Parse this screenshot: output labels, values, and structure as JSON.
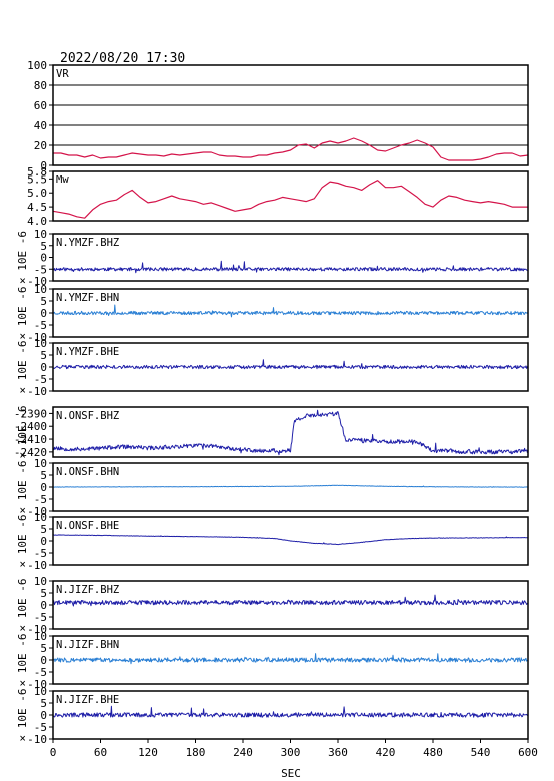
{
  "title": "2022/08/20 17:30",
  "xlabel": "SEC",
  "chart_data": [
    {
      "type": "line",
      "panel_label": "VR",
      "color": "#d4144a",
      "ylim": [
        0,
        100
      ],
      "yticks": [
        "0",
        "20",
        "40",
        "60",
        "80",
        "100"
      ],
      "grid": true,
      "x": [
        0,
        10,
        20,
        30,
        40,
        50,
        60,
        70,
        80,
        90,
        100,
        110,
        120,
        130,
        140,
        150,
        160,
        170,
        180,
        190,
        200,
        210,
        220,
        230,
        240,
        250,
        260,
        270,
        280,
        290,
        300,
        310,
        320,
        330,
        340,
        350,
        360,
        370,
        380,
        390,
        400,
        410,
        420,
        430,
        440,
        450,
        460,
        470,
        480,
        490,
        500,
        510,
        520,
        530,
        540,
        550,
        560,
        570,
        580,
        590,
        600
      ],
      "y": [
        12,
        12,
        10,
        10,
        8,
        10,
        7,
        8,
        8,
        10,
        12,
        11,
        10,
        10,
        9,
        11,
        10,
        11,
        12,
        13,
        13,
        10,
        9,
        9,
        8,
        8,
        10,
        10,
        12,
        13,
        15,
        20,
        21,
        17,
        22,
        24,
        22,
        24,
        27,
        24,
        20,
        15,
        14,
        17,
        20,
        22,
        25,
        22,
        18,
        8,
        5,
        5,
        5,
        5,
        6,
        8,
        11,
        12,
        12,
        9,
        10
      ]
    },
    {
      "type": "line",
      "panel_label": "Mw",
      "color": "#d4144a",
      "ylim": [
        4.0,
        5.8
      ],
      "yticks": [
        "4.0",
        "4.5",
        "5.0",
        "5.5",
        "5.8"
      ],
      "grid": false,
      "x": [
        0,
        10,
        20,
        30,
        40,
        50,
        60,
        70,
        80,
        90,
        100,
        110,
        120,
        130,
        140,
        150,
        160,
        170,
        180,
        190,
        200,
        210,
        220,
        230,
        240,
        250,
        260,
        270,
        280,
        290,
        300,
        310,
        320,
        330,
        340,
        350,
        360,
        370,
        380,
        390,
        400,
        410,
        420,
        430,
        440,
        450,
        460,
        470,
        480,
        490,
        500,
        510,
        520,
        530,
        540,
        550,
        560,
        570,
        580,
        590,
        600
      ],
      "y": [
        4.35,
        4.3,
        4.25,
        4.15,
        4.1,
        4.4,
        4.6,
        4.7,
        4.75,
        4.95,
        5.1,
        4.85,
        4.65,
        4.7,
        4.8,
        4.9,
        4.8,
        4.75,
        4.7,
        4.6,
        4.65,
        4.55,
        4.45,
        4.35,
        4.4,
        4.45,
        4.6,
        4.7,
        4.75,
        4.85,
        4.8,
        4.75,
        4.7,
        4.8,
        5.2,
        5.4,
        5.35,
        5.25,
        5.2,
        5.1,
        5.3,
        5.45,
        5.2,
        5.2,
        5.25,
        5.05,
        4.85,
        4.6,
        4.5,
        4.75,
        4.9,
        4.85,
        4.75,
        4.7,
        4.65,
        4.7,
        4.65,
        4.6,
        4.5,
        4.5,
        4.5
      ]
    },
    {
      "type": "line",
      "panel_label": "N.YMZF.BHZ",
      "ylabel": "× 10E -6",
      "color": "#1f1fa8",
      "ylim": [
        -10,
        10
      ],
      "yticks": [
        "-10",
        "-5",
        "0",
        "5",
        "10"
      ],
      "grid": false,
      "baseline": -5,
      "noise": 0.7,
      "seed": 11,
      "x": [
        0,
        600
      ],
      "y": [
        -5,
        -5
      ]
    },
    {
      "type": "line",
      "panel_label": "N.YMZF.BHN",
      "ylabel": "× 10E -6",
      "color": "#2a7fd4",
      "ylim": [
        -10,
        10
      ],
      "yticks": [
        "-10",
        "-5",
        "0",
        "5",
        "10"
      ],
      "grid": false,
      "baseline": 0,
      "noise": 0.7,
      "seed": 23,
      "x": [
        0,
        600
      ],
      "y": [
        0,
        0
      ]
    },
    {
      "type": "line",
      "panel_label": "N.YMZF.BHE",
      "ylabel": "× 10E -6",
      "color": "#1f1fa8",
      "ylim": [
        -10,
        10
      ],
      "yticks": [
        "-10",
        "-5",
        "0",
        "5",
        "10"
      ],
      "grid": false,
      "baseline": 0,
      "noise": 0.7,
      "seed": 37,
      "x": [
        0,
        600
      ],
      "y": [
        0,
        0
      ]
    },
    {
      "type": "line",
      "panel_label": "N.ONSF.BHZ",
      "ylabel": "× 10E -6",
      "color": "#1f1fa8",
      "ylim": [
        -2424,
        -2385
      ],
      "yticks": [
        "-2420",
        "-2410",
        "-2400",
        "-2390"
      ],
      "grid": false,
      "noise": 1.6,
      "seed": 53,
      "x": [
        0,
        30,
        60,
        90,
        120,
        150,
        180,
        200,
        220,
        240,
        250,
        260,
        280,
        300,
        305,
        320,
        340,
        360,
        370,
        380,
        400,
        420,
        440,
        460,
        480,
        500,
        520,
        540,
        560,
        580,
        600
      ],
      "y": [
        -2417,
        -2418,
        -2417,
        -2416,
        -2417,
        -2416,
        -2415,
        -2415,
        -2417,
        -2418,
        -2419,
        -2419,
        -2419,
        -2419,
        -2396,
        -2392,
        -2391,
        -2390,
        -2411,
        -2411,
        -2411,
        -2412,
        -2412,
        -2412,
        -2419,
        -2419,
        -2420,
        -2420,
        -2420,
        -2420,
        -2419
      ]
    },
    {
      "type": "line",
      "panel_label": "N.ONSF.BHN",
      "ylabel": "× 10E -6",
      "color": "#2a7fd4",
      "ylim": [
        -10,
        10
      ],
      "yticks": [
        "-10",
        "-5",
        "0",
        "5",
        "10"
      ],
      "grid": false,
      "noise": 0.08,
      "seed": 61,
      "x": [
        0,
        150,
        300,
        360,
        420,
        480,
        540,
        600
      ],
      "y": [
        0,
        0.1,
        0.3,
        0.7,
        0.3,
        0.1,
        0,
        0
      ]
    },
    {
      "type": "line",
      "panel_label": "N.ONSF.BHE",
      "ylabel": "× 10E -6",
      "color": "#1f1fa8",
      "ylim": [
        -10,
        10
      ],
      "yticks": [
        "-10",
        "-5",
        "0",
        "5",
        "10"
      ],
      "grid": false,
      "noise": 0.08,
      "seed": 67,
      "x": [
        0,
        60,
        120,
        180,
        240,
        280,
        300,
        330,
        360,
        390,
        420,
        450,
        480,
        540,
        600
      ],
      "y": [
        2.5,
        2.3,
        2,
        1.8,
        1.5,
        1,
        0,
        -1,
        -1.4,
        -0.6,
        0.5,
        1,
        1.2,
        1.3,
        1.4
      ]
    },
    {
      "type": "line",
      "panel_label": "N.JIZF.BHZ",
      "ylabel": "× 10E -6",
      "color": "#1f1fa8",
      "ylim": [
        -10,
        10
      ],
      "yticks": [
        "-10",
        "-5",
        "0",
        "5",
        "10"
      ],
      "grid": false,
      "baseline": 1,
      "noise": 0.9,
      "seed": 79,
      "x": [
        0,
        600
      ],
      "y": [
        1,
        1
      ]
    },
    {
      "type": "line",
      "panel_label": "N.JIZF.BHN",
      "ylabel": "× 10E -6",
      "color": "#2a7fd4",
      "ylim": [
        -10,
        10
      ],
      "yticks": [
        "-10",
        "-5",
        "0",
        "5",
        "10"
      ],
      "grid": false,
      "baseline": 0,
      "noise": 0.9,
      "seed": 83,
      "x": [
        0,
        600
      ],
      "y": [
        0,
        0
      ]
    },
    {
      "type": "line",
      "panel_label": "N.JIZF.BHE",
      "ylabel": "× 10E -6",
      "color": "#1f1fa8",
      "ylim": [
        -10,
        10
      ],
      "yticks": [
        "-10",
        "-5",
        "0",
        "5",
        "10"
      ],
      "grid": false,
      "baseline": 0,
      "noise": 0.9,
      "seed": 97,
      "x": [
        0,
        600
      ],
      "y": [
        0,
        0
      ]
    }
  ],
  "xaxis": {
    "xlim": [
      0,
      600
    ],
    "ticks": [
      "0",
      "60",
      "120",
      "180",
      "240",
      "300",
      "360",
      "420",
      "480",
      "540",
      "600"
    ]
  }
}
